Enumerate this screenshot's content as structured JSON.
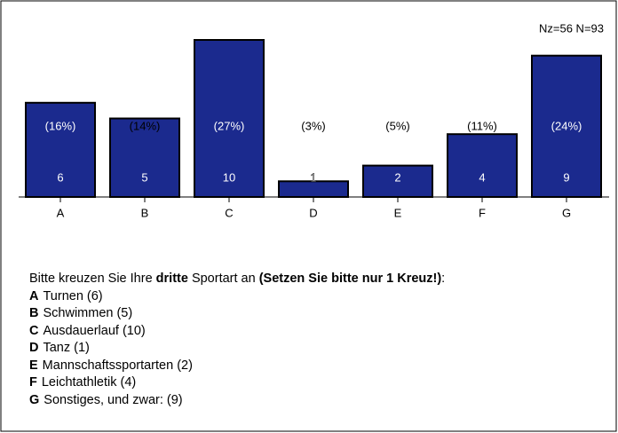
{
  "chart_data": {
    "type": "bar",
    "annotation": "Nz=56  N=93",
    "categories": [
      "A",
      "B",
      "C",
      "D",
      "E",
      "F",
      "G"
    ],
    "values": [
      6,
      5,
      10,
      1,
      2,
      4,
      9
    ],
    "percent_labels": [
      "(16%)",
      "(14%)",
      "(27%)",
      "(3%)",
      "(5%)",
      "(11%)",
      "(24%)"
    ],
    "color": "#1b2a8e",
    "ylim": [
      0,
      10
    ]
  },
  "question": {
    "text_1": "Bitte kreuzen Sie Ihre ",
    "bold_1": "dritte",
    "text_2": " Sportart an ",
    "bold_2": "(Setzen Sie bitte nur 1 Kreuz!)",
    "text_3": ":"
  },
  "options": [
    {
      "letter": "A",
      "label": "Turnen (6)"
    },
    {
      "letter": "B",
      "label": "Schwimmen (5)"
    },
    {
      "letter": "C",
      "label": "Ausdauerlauf (10)"
    },
    {
      "letter": "D",
      "label": "Tanz (1)"
    },
    {
      "letter": "E",
      "label": "Mannschaftssportarten (2)"
    },
    {
      "letter": "F",
      "label": "Leichtathletik (4)"
    },
    {
      "letter": "G",
      "label": "Sonstiges, und zwar: (9)"
    }
  ]
}
